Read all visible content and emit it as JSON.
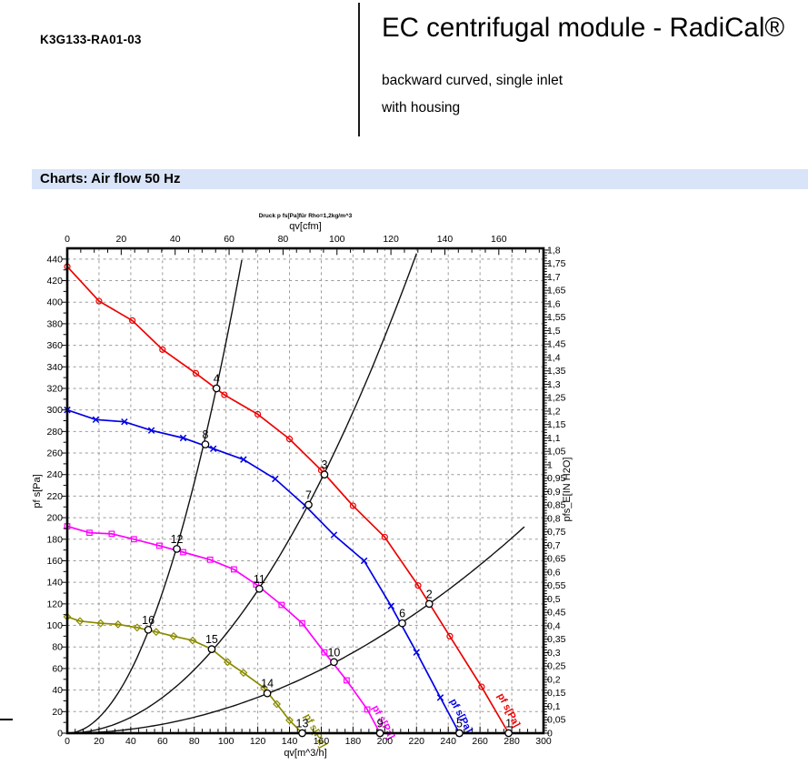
{
  "page": {
    "part_number": "K3G133-RA01-03",
    "title": "EC centrifugal module - RadiCal®",
    "subtitle1": "backward curved, single inlet",
    "subtitle2": "with housing",
    "section_header": "Charts: Air flow 50 Hz",
    "banner_bg": "#d9e4f8"
  },
  "chart_data": {
    "type": "line",
    "title": "Druck p fs[Pa]für Rho=1,2kg/m^3",
    "grid": true,
    "axes": {
      "bottom": {
        "label": "qv[m^3/h]",
        "min": 0,
        "max": 300,
        "major_step": 20,
        "minor_step": 5
      },
      "top": {
        "label": "qv[cfm]",
        "min": 0,
        "max": 176,
        "major_step": 20,
        "minor_step": 5,
        "last_label": 160,
        "to_m3h": 1.699011
      },
      "left": {
        "label": "pf s[Pa]",
        "min": 0,
        "max": 450,
        "major_step": 20,
        "minor_step": 10,
        "last_label": 440
      },
      "right": {
        "label": "pfs_E[IN H2O]",
        "min": 0,
        "max": 1.8,
        "major_step": 0.05,
        "minor_step": 0.01,
        "pa_per_unit": 249.089
      }
    },
    "series": [
      {
        "name": "speed-1-red",
        "color": "#ee0000",
        "marker": "circle",
        "curve_label": {
          "text": "pf s[Pa]",
          "q": 271,
          "p": 35,
          "rotate": 62
        },
        "points": [
          [
            0,
            433
          ],
          [
            20,
            401
          ],
          [
            41,
            383
          ],
          [
            60,
            356
          ],
          [
            81,
            334
          ],
          [
            99,
            314
          ],
          [
            120,
            296
          ],
          [
            140,
            273
          ],
          [
            160,
            244
          ],
          [
            180,
            211
          ],
          [
            200,
            182
          ],
          [
            221,
            137
          ],
          [
            241,
            90
          ],
          [
            261,
            43
          ],
          [
            278,
            0
          ]
        ]
      },
      {
        "name": "speed-2-blue",
        "color": "#0000e6",
        "marker": "x",
        "curve_label": {
          "text": "pf s[Pa]",
          "q": 241,
          "p": 30,
          "rotate": 62
        },
        "points": [
          [
            0,
            300
          ],
          [
            18,
            291
          ],
          [
            36,
            289
          ],
          [
            53,
            281
          ],
          [
            73,
            274
          ],
          [
            92,
            264
          ],
          [
            111,
            254
          ],
          [
            131,
            236
          ],
          [
            150,
            211
          ],
          [
            168,
            184
          ],
          [
            187,
            160
          ],
          [
            204,
            118
          ],
          [
            220,
            75
          ],
          [
            235,
            33
          ],
          [
            247,
            0
          ]
        ]
      },
      {
        "name": "speed-3-magenta",
        "color": "#ff00ff",
        "marker": "square",
        "curve_label": {
          "text": "pf s[Pa]",
          "q": 192,
          "p": 24,
          "rotate": 62
        },
        "points": [
          [
            0,
            192
          ],
          [
            14,
            186
          ],
          [
            28,
            185
          ],
          [
            42,
            180
          ],
          [
            58,
            174
          ],
          [
            73,
            168
          ],
          [
            90,
            161
          ],
          [
            105,
            152
          ],
          [
            119,
            138
          ],
          [
            135,
            119
          ],
          [
            148,
            102
          ],
          [
            162,
            75
          ],
          [
            176,
            49
          ],
          [
            189,
            22
          ],
          [
            197,
            0
          ]
        ]
      },
      {
        "name": "speed-4-olive",
        "color": "#8a8a00",
        "marker": "diamond",
        "curve_label": {
          "text": "pf s[Pa]",
          "q": 149,
          "p": 16,
          "rotate": 62
        },
        "points": [
          [
            0,
            108
          ],
          [
            8,
            104
          ],
          [
            21,
            102
          ],
          [
            32,
            101
          ],
          [
            44,
            98
          ],
          [
            56,
            94
          ],
          [
            67,
            90
          ],
          [
            79,
            86
          ],
          [
            91,
            78
          ],
          [
            101,
            66
          ],
          [
            111,
            56
          ],
          [
            124,
            42
          ],
          [
            132,
            27
          ],
          [
            140,
            12
          ],
          [
            148,
            0
          ]
        ]
      }
    ],
    "system_curves": [
      {
        "name": "system-curve-steep",
        "k": 0.0363,
        "q_end": 111.4
      },
      {
        "name": "system-curve-middle",
        "k": 0.0092,
        "q_end": 221.2
      },
      {
        "name": "system-curve-shallow",
        "k": 0.00231,
        "q_end": 289
      }
    ],
    "operating_points": [
      {
        "n": "1",
        "q": 278,
        "p": 0
      },
      {
        "n": "2",
        "q": 228,
        "p": 120
      },
      {
        "n": "3",
        "q": 162,
        "p": 240
      },
      {
        "n": "4",
        "q": 94,
        "p": 320
      },
      {
        "n": "5",
        "q": 247,
        "p": 0
      },
      {
        "n": "6",
        "q": 211,
        "p": 102
      },
      {
        "n": "7",
        "q": 152,
        "p": 212
      },
      {
        "n": "8",
        "q": 87,
        "p": 268
      },
      {
        "n": "9",
        "q": 197,
        "p": 0
      },
      {
        "n": "10",
        "q": 168,
        "p": 66
      },
      {
        "n": "11",
        "q": 121,
        "p": 134
      },
      {
        "n": "12",
        "q": 69,
        "p": 171
      },
      {
        "n": "13",
        "q": 148,
        "p": 0
      },
      {
        "n": "14",
        "q": 126,
        "p": 37
      },
      {
        "n": "15",
        "q": 91,
        "p": 78
      },
      {
        "n": "16",
        "q": 51,
        "p": 96
      }
    ]
  }
}
